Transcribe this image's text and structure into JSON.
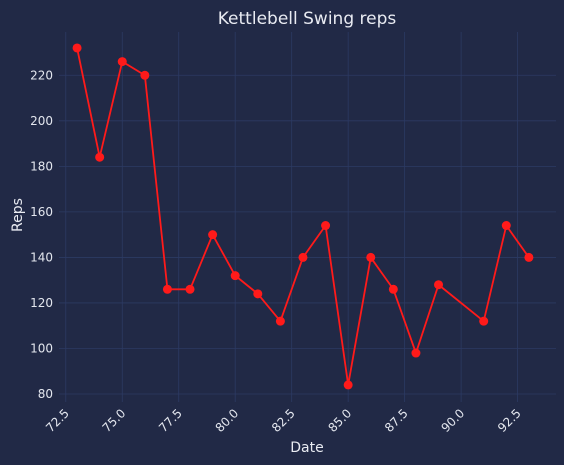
{
  "chart_data": {
    "type": "line",
    "title": "Kettlebell Swing reps",
    "xlabel": "Date",
    "ylabel": "Reps",
    "xlim": [
      72.2,
      94.2
    ],
    "ylim": [
      76.5,
      239
    ],
    "xticks": [
      72.5,
      75.0,
      77.5,
      80.0,
      82.5,
      85.0,
      87.5,
      90.0,
      92.5
    ],
    "xtick_labels": [
      "72.5",
      "75.0",
      "77.5",
      "80.0",
      "82.5",
      "85.0",
      "87.5",
      "90.0",
      "92.5"
    ],
    "yticks": [
      80,
      100,
      120,
      140,
      160,
      180,
      200,
      220
    ],
    "ytick_labels": [
      "80",
      "100",
      "120",
      "140",
      "160",
      "180",
      "200",
      "220"
    ],
    "grid": true,
    "series": [
      {
        "color": "#ff1a1a",
        "x": [
          73,
          74,
          75,
          76,
          77,
          78,
          79,
          80,
          81,
          82,
          83,
          84,
          85,
          86,
          87,
          88,
          89,
          91,
          92,
          93
        ],
        "y": [
          232,
          184,
          226,
          220,
          126,
          126,
          150,
          132,
          124,
          112,
          140,
          154,
          84,
          140,
          126,
          98,
          128,
          112,
          154,
          140
        ]
      }
    ]
  },
  "colors": {
    "background": "#212946",
    "grid": "#2c3a63",
    "line": "#ff1a1a"
  }
}
